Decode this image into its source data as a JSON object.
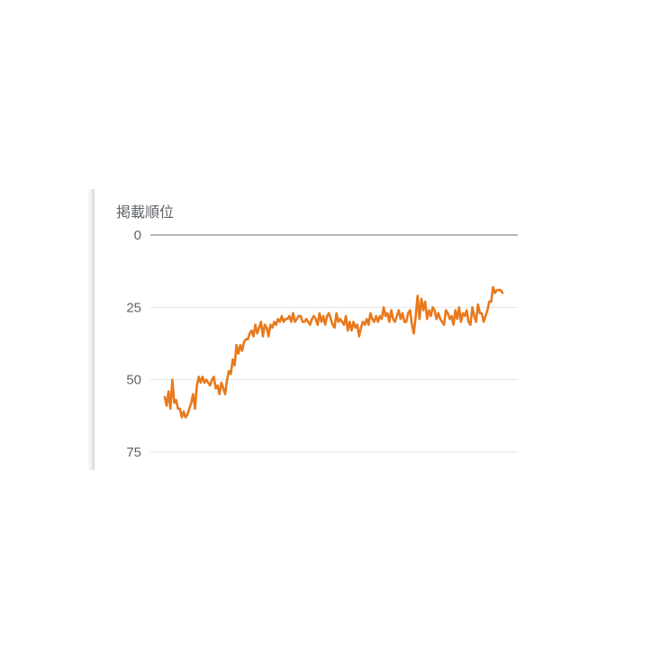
{
  "chart_data": {
    "type": "line",
    "ylabel": "掲載順位",
    "y_inverted": true,
    "ylim": [
      0,
      75
    ],
    "yticks": [
      0,
      25,
      50,
      75
    ],
    "grid": true,
    "series": [
      {
        "color": "#e8791c",
        "x": [
          0,
          1,
          2,
          3,
          4,
          5,
          6,
          7,
          8,
          9,
          10,
          11,
          12,
          13,
          14,
          15,
          16,
          17,
          18,
          19,
          20,
          21,
          22,
          23,
          24,
          25,
          26,
          27,
          28,
          29,
          30,
          31,
          32,
          33,
          34,
          35,
          36,
          37,
          38,
          39,
          40,
          41,
          42,
          43,
          44,
          45,
          46,
          47,
          48,
          49,
          50,
          51,
          52,
          53,
          54,
          55,
          56,
          57,
          58,
          59,
          60,
          61,
          62,
          63,
          64,
          65,
          66,
          67,
          68,
          69,
          70,
          71,
          72,
          73,
          74,
          75,
          76,
          77,
          78,
          79,
          80,
          81,
          82,
          83,
          84,
          85,
          86,
          87,
          88,
          89,
          90,
          91,
          92,
          93,
          94,
          95,
          96,
          97,
          98,
          99,
          100,
          101,
          102,
          103,
          104,
          105,
          106,
          107,
          108,
          109,
          110,
          111,
          112,
          113,
          114,
          115,
          116,
          117,
          118,
          119,
          120,
          121,
          122,
          123,
          124,
          125,
          126,
          127,
          128,
          129,
          130,
          131,
          132,
          133,
          134,
          135,
          136,
          137,
          138,
          139,
          140,
          141,
          142,
          143,
          144,
          145,
          146,
          147,
          148,
          149,
          150,
          151,
          152,
          153,
          154,
          155,
          156,
          157,
          158,
          159,
          160,
          161,
          162,
          163,
          164,
          165,
          166,
          167,
          168,
          169,
          170,
          171,
          172,
          173,
          174,
          175,
          176,
          177,
          178,
          179
        ],
        "values": [
          56,
          59,
          54,
          60,
          50,
          58,
          57,
          60,
          60,
          63,
          61,
          63,
          62,
          60,
          58,
          55,
          60,
          52,
          49,
          51,
          49,
          51,
          50,
          51,
          52,
          50,
          49,
          53,
          52,
          55,
          51,
          53,
          55,
          50,
          47,
          48,
          43,
          45,
          38,
          41,
          38,
          40,
          37,
          36,
          36,
          34,
          33,
          35,
          31,
          34,
          32,
          30,
          35,
          31,
          32,
          35,
          31,
          32,
          30,
          31,
          29,
          30,
          28,
          30,
          29,
          29,
          28,
          30,
          27,
          30,
          29,
          28,
          28,
          30,
          30,
          29,
          30,
          31,
          29,
          28,
          29,
          31,
          27,
          30,
          28,
          31,
          28,
          27,
          29,
          31,
          32,
          27,
          30,
          29,
          30,
          31,
          28,
          33,
          30,
          33,
          30,
          32,
          31,
          35,
          32,
          30,
          31,
          29,
          31,
          27,
          29,
          30,
          28,
          30,
          28,
          29,
          25,
          28,
          27,
          30,
          26,
          29,
          30,
          28,
          26,
          29,
          27,
          30,
          30,
          27,
          26,
          31,
          34,
          28,
          21,
          29,
          22,
          26,
          23,
          29,
          26,
          28,
          25,
          26,
          29,
          27,
          29,
          30,
          31,
          26,
          27,
          29,
          28,
          31,
          26,
          29,
          25,
          30,
          27,
          28,
          26,
          30,
          31,
          25,
          28,
          30,
          24,
          27,
          27,
          30,
          28,
          26,
          23,
          23,
          18,
          20,
          19,
          19,
          19,
          20
        ]
      }
    ]
  }
}
